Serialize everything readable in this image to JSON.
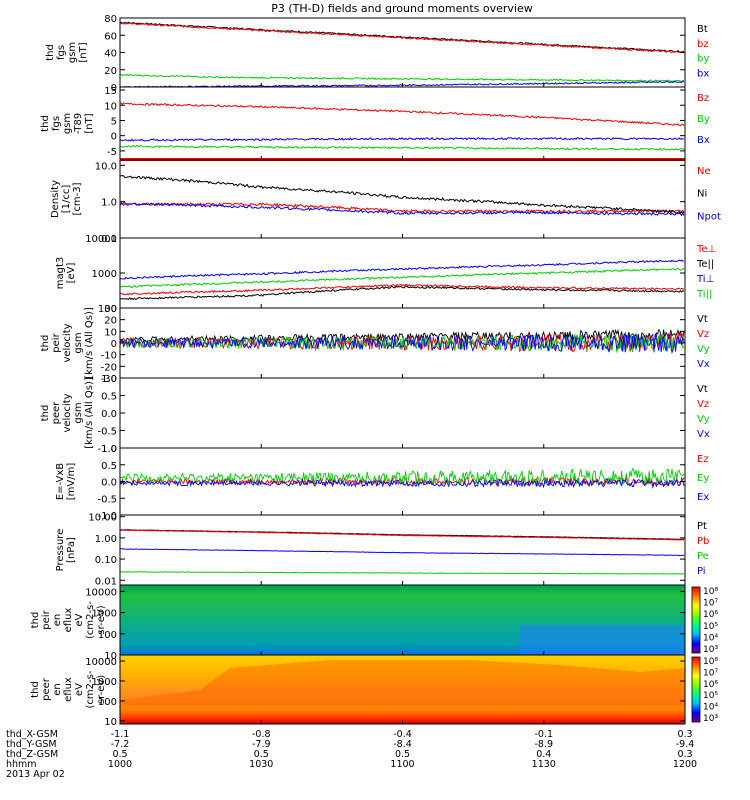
{
  "title": "P3 (TH-D) fields and ground moments overview",
  "chart_data": [
    {
      "type": "line",
      "ylabel": [
        "thd",
        "fgs",
        "gsm",
        "[nT]"
      ],
      "ylim": [
        0,
        80
      ],
      "yscale": "linear",
      "yticks": [
        "0",
        "20",
        "40",
        "60",
        "80"
      ],
      "legend_placement": "right",
      "series": [
        {
          "name": "Bt",
          "color": "#000000",
          "x": [
            1000,
            1200
          ],
          "y": [
            75,
            41
          ]
        },
        {
          "name": "bz",
          "color": "#ff0000",
          "x": [
            1000,
            1200
          ],
          "y": [
            74,
            40
          ]
        },
        {
          "name": "by",
          "color": "#00cc00",
          "x": [
            1000,
            1040,
            1120,
            1200
          ],
          "y": [
            14,
            11,
            9,
            7
          ]
        },
        {
          "name": "bx",
          "color": "#0000ff",
          "x": [
            1000,
            1100,
            1200
          ],
          "y": [
            0,
            2,
            6
          ]
        }
      ]
    },
    {
      "type": "line",
      "ylabel": [
        "thd",
        "fgs",
        "gsm",
        "-T89",
        "[nT]"
      ],
      "ylim": [
        -8,
        16
      ],
      "yscale": "linear",
      "yticks": [
        "-5",
        "0",
        "5",
        "10",
        "15"
      ],
      "legend_placement": "right",
      "series": [
        {
          "name": "Bz",
          "color": "#ff0000",
          "x": [
            1000,
            1050,
            1100,
            1150,
            1200
          ],
          "y": [
            10.5,
            9.5,
            8.0,
            6.0,
            3.5
          ]
        },
        {
          "name": "By",
          "color": "#00cc00",
          "x": [
            1000,
            1100,
            1200
          ],
          "y": [
            -3.5,
            -4.0,
            -4.5
          ]
        },
        {
          "name": "Bx",
          "color": "#0000ff",
          "x": [
            1000,
            1100,
            1200
          ],
          "y": [
            -1.5,
            -1.0,
            -1.0
          ]
        }
      ]
    },
    {
      "type": "line",
      "ylabel": [
        "Density",
        "[1/cc]",
        "[cm-3]"
      ],
      "ylim": [
        0.1,
        14
      ],
      "yscale": "log",
      "yticks": [
        "0.1",
        "1.0",
        "10.0"
      ],
      "legend_placement": "right",
      "series": [
        {
          "name": "Ne",
          "color": "#ff0000",
          "x": [
            1000,
            1050,
            1100,
            1150,
            1200
          ],
          "y": [
            0.85,
            0.85,
            0.55,
            0.55,
            0.55
          ]
        },
        {
          "name": "Ni",
          "color": "#000000",
          "x": [
            1000,
            1050,
            1100,
            1150,
            1200
          ],
          "y": [
            5.0,
            2.5,
            1.3,
            0.8,
            0.5
          ]
        },
        {
          "name": "Npot",
          "color": "#0000ff",
          "x": [
            1000,
            1050,
            1100,
            1150,
            1200
          ],
          "y": [
            0.9,
            0.7,
            0.48,
            0.5,
            0.45
          ]
        }
      ]
    },
    {
      "type": "line",
      "ylabel": [
        "magt3",
        "[eV]"
      ],
      "ylim": [
        100,
        10000
      ],
      "yscale": "log",
      "yticks": [
        "100",
        "1000",
        "10000"
      ],
      "legend_placement": "right",
      "series": [
        {
          "name": "Te⊥",
          "color": "#ff0000",
          "x": [
            1000,
            1050,
            1100,
            1150,
            1200
          ],
          "y": [
            250,
            320,
            450,
            380,
            350
          ]
        },
        {
          "name": "Te||",
          "color": "#000000",
          "x": [
            1000,
            1050,
            1100,
            1150,
            1200
          ],
          "y": [
            180,
            230,
            400,
            330,
            300
          ]
        },
        {
          "name": "Ti⊥",
          "color": "#0000ff",
          "x": [
            1000,
            1050,
            1100,
            1150,
            1200
          ],
          "y": [
            700,
            950,
            1300,
            1700,
            2300
          ]
        },
        {
          "name": "Ti||",
          "color": "#00cc00",
          "x": [
            1000,
            1050,
            1100,
            1150,
            1200
          ],
          "y": [
            400,
            550,
            750,
            1000,
            1300
          ]
        }
      ]
    },
    {
      "type": "line",
      "ylabel": [
        "thd",
        "peir",
        "velocity",
        "gsm",
        "[km/s (All Qs)]"
      ],
      "ylim": [
        -30,
        30
      ],
      "yscale": "linear",
      "yticks": [
        "-30",
        "-20",
        "-10",
        "0",
        "10",
        "20",
        "30"
      ],
      "legend_placement": "right",
      "series": [
        {
          "name": "Vt",
          "color": "#000000",
          "x": [
            1000,
            1100,
            1200
          ],
          "y": [
            3,
            5,
            7
          ]
        },
        {
          "name": "Vz",
          "color": "#ff0000",
          "x": [
            1000,
            1100,
            1200
          ],
          "y": [
            0,
            0,
            0
          ]
        },
        {
          "name": "Vy",
          "color": "#00cc00",
          "x": [
            1000,
            1100,
            1200
          ],
          "y": [
            0,
            0,
            0
          ]
        },
        {
          "name": "Vx",
          "color": "#0000ff",
          "x": [
            1000,
            1100,
            1200
          ],
          "y": [
            0,
            0,
            0
          ]
        }
      ]
    },
    {
      "type": "line",
      "ylabel": [
        "thd",
        "peer",
        "velocity",
        "gsm",
        "[km/s (All Qs)]"
      ],
      "ylim": [
        -1.0,
        1.0
      ],
      "yscale": "linear",
      "yticks": [
        "-1.0",
        "-0.5",
        "0.0",
        "0.5",
        "1.0"
      ],
      "legend_placement": "right",
      "series": [
        {
          "name": "Vt",
          "color": "#000000",
          "x": [],
          "y": []
        },
        {
          "name": "Vz",
          "color": "#ff0000",
          "x": [],
          "y": []
        },
        {
          "name": "Vy",
          "color": "#00cc00",
          "x": [],
          "y": []
        },
        {
          "name": "Vx",
          "color": "#0000ff",
          "x": [],
          "y": []
        }
      ]
    },
    {
      "type": "line",
      "ylabel": [
        "E=-VxB",
        "[mV/m]"
      ],
      "ylim": [
        -1.0,
        1.0
      ],
      "yscale": "linear",
      "yticks": [
        "-1.0",
        "-0.5",
        "0.0",
        "0.5",
        "1.0"
      ],
      "legend_placement": "right",
      "series": [
        {
          "name": "Ez",
          "color": "#ff0000",
          "x": [
            1000,
            1100,
            1200
          ],
          "y": [
            0,
            0,
            0
          ]
        },
        {
          "name": "Ey",
          "color": "#00cc00",
          "x": [
            1000,
            1100,
            1200
          ],
          "y": [
            0.1,
            0.12,
            0.15
          ]
        },
        {
          "name": "Ex",
          "color": "#0000ff",
          "x": [
            1000,
            1100,
            1200
          ],
          "y": [
            -0.05,
            -0.05,
            -0.05
          ]
        }
      ]
    },
    {
      "type": "line",
      "ylabel": [
        "Pressure",
        "[nPa]"
      ],
      "ylim": [
        0.006,
        12
      ],
      "yscale": "log",
      "yticks": [
        "0.01",
        "0.10",
        "1.00",
        "10.00"
      ],
      "legend_placement": "right",
      "series": [
        {
          "name": "Pt",
          "color": "#000000",
          "x": [
            1000,
            1100,
            1200
          ],
          "y": [
            2.4,
            1.4,
            0.85
          ]
        },
        {
          "name": "Pb",
          "color": "#ff0000",
          "x": [
            1000,
            1100,
            1200
          ],
          "y": [
            2.3,
            1.3,
            0.8
          ]
        },
        {
          "name": "Pe",
          "color": "#00cc00",
          "x": [
            1000,
            1100,
            1200
          ],
          "y": [
            0.025,
            0.022,
            0.02
          ]
        },
        {
          "name": "Pi",
          "color": "#0000ff",
          "x": [
            1000,
            1100,
            1200
          ],
          "y": [
            0.3,
            0.2,
            0.15
          ]
        }
      ]
    },
    {
      "type": "heatmap",
      "ylabel": [
        "thd",
        "peir",
        "en",
        "eflux",
        "eV",
        "(cm2-s-",
        "sr-eV)"
      ],
      "ylim": [
        10,
        20000
      ],
      "yscale": "log",
      "yticks": [
        "10",
        "100",
        "1000",
        "10000"
      ],
      "colorbar_ticks": [
        "10³",
        "10⁴",
        "10⁵",
        "10⁶",
        "10⁷",
        "10⁸"
      ]
    },
    {
      "type": "heatmap",
      "ylabel": [
        "thd",
        "peer",
        "en",
        "eflux",
        "eV",
        "(cm2-s-",
        "sr-eV)"
      ],
      "ylim": [
        7,
        20000
      ],
      "yscale": "log",
      "yticks": [
        "10",
        "100",
        "1000",
        "10000"
      ],
      "colorbar_ticks": [
        "10³",
        "10⁴",
        "10⁵",
        "10⁶",
        "10⁷",
        "10⁸"
      ]
    }
  ],
  "xaxis": {
    "xlim": [
      1000,
      1200
    ],
    "ticks": [
      1000,
      1030,
      1100,
      1130,
      1200
    ],
    "rows": [
      {
        "label": "thd_X-GSM",
        "values": [
          "-1.1",
          "-0.8",
          "-0.4",
          "-0.1",
          "0.3"
        ]
      },
      {
        "label": "thd_Y-GSM",
        "values": [
          "-7.2",
          "-7.9",
          "-8.4",
          "-8.9",
          "-9.4"
        ]
      },
      {
        "label": "thd_Z-GSM",
        "values": [
          "0.5",
          "0.5",
          "0.5",
          "0.4",
          "0.3"
        ]
      },
      {
        "label": "hhmm",
        "values": [
          "1000",
          "1030",
          "1100",
          "1130",
          "1200"
        ]
      }
    ],
    "date": "2013 Apr 02"
  }
}
